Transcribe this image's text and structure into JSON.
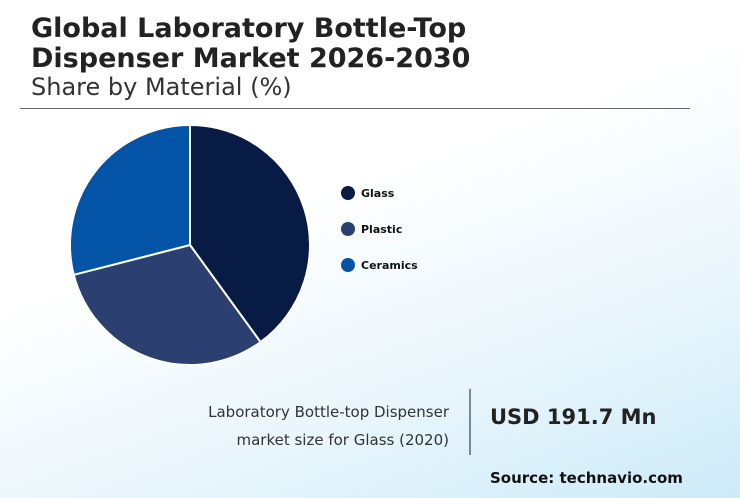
{
  "title_line1": "Global Laboratory Bottle-Top",
  "title_line2": "Dispenser Market 2026-2030",
  "subtitle": "Share by Material (%)",
  "chart_data": {
    "type": "pie",
    "title": "Global Laboratory Bottle-Top Dispenser Market 2026-2030 - Share by Material (%)",
    "categories": [
      "Glass",
      "Plastic",
      "Ceramics"
    ],
    "values": [
      40,
      31,
      29
    ],
    "colors": [
      "#071b45",
      "#2b3f70",
      "#0354a6"
    ],
    "legend_position": "right"
  },
  "legend": [
    "Glass",
    "Plastic",
    "Ceramics"
  ],
  "callout": {
    "line1": "Laboratory Bottle-top Dispenser",
    "line2": "market size for Glass (2020)",
    "value": "USD 191.7 Mn"
  },
  "source": "Source: technavio.com"
}
